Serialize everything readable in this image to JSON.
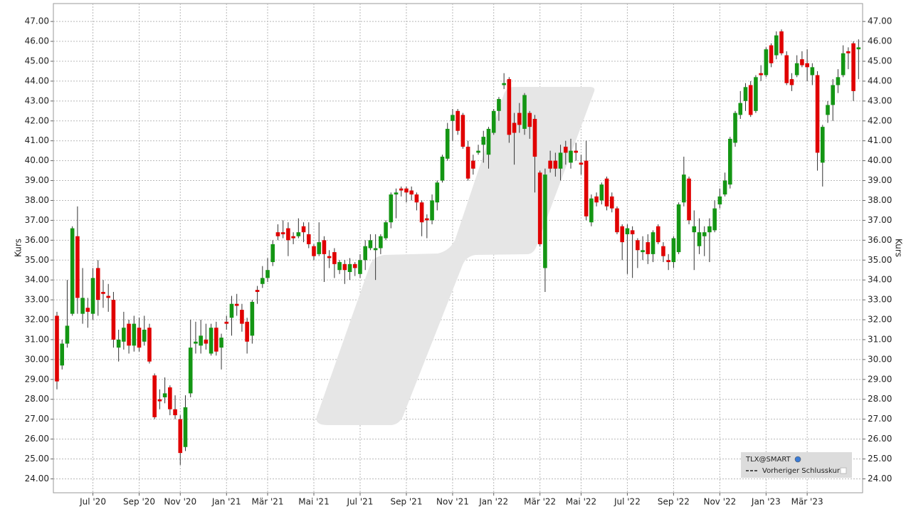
{
  "chart_data": {
    "type": "candlestick",
    "y_label": "Kurs",
    "ylim": [
      23.3,
      47.9
    ],
    "yticks": [
      {
        "value": 24,
        "label": "24.00"
      },
      {
        "value": 25,
        "label": "25.00"
      },
      {
        "value": 26,
        "label": "26.00"
      },
      {
        "value": 27,
        "label": "27.00"
      },
      {
        "value": 28,
        "label": "28.00"
      },
      {
        "value": 29,
        "label": "29.00"
      },
      {
        "value": 30,
        "label": "30.00"
      },
      {
        "value": 31,
        "label": "31.00"
      },
      {
        "value": 32,
        "label": "32.00"
      },
      {
        "value": 33,
        "label": "33.00"
      },
      {
        "value": 34,
        "label": "34.00"
      },
      {
        "value": 35,
        "label": "35.00"
      },
      {
        "value": 36,
        "label": "36.00"
      },
      {
        "value": 37,
        "label": "37.00"
      },
      {
        "value": 38,
        "label": "38.00"
      },
      {
        "value": 39,
        "label": "39.00"
      },
      {
        "value": 40,
        "label": "40.00"
      },
      {
        "value": 41,
        "label": "41.00"
      },
      {
        "value": 42,
        "label": "42.00"
      },
      {
        "value": 43,
        "label": "43.00"
      },
      {
        "value": 44,
        "label": "44.00"
      },
      {
        "value": 45,
        "label": "45.00"
      },
      {
        "value": 46,
        "label": "46.00"
      },
      {
        "value": 47,
        "label": "47.00"
      }
    ],
    "grid": true,
    "legend_position": "lower right",
    "reference_line": {
      "name": "Vorheriger Schlusskurs"
    },
    "categories": [
      null,
      null,
      null,
      null,
      null,
      null,
      null,
      "Jul '20",
      null,
      null,
      null,
      null,
      null,
      null,
      null,
      null,
      "Sep '20",
      null,
      null,
      null,
      null,
      null,
      null,
      null,
      "Nov '20",
      null,
      null,
      null,
      null,
      null,
      null,
      null,
      null,
      "Jan '21",
      null,
      null,
      null,
      null,
      null,
      null,
      null,
      "Mär '21",
      null,
      null,
      null,
      null,
      null,
      null,
      null,
      null,
      "Mai '21",
      null,
      null,
      null,
      null,
      null,
      null,
      null,
      null,
      "Jul '21",
      null,
      null,
      null,
      null,
      null,
      null,
      null,
      null,
      "Sep '21",
      null,
      null,
      null,
      null,
      null,
      null,
      null,
      null,
      "Nov '21",
      null,
      null,
      null,
      null,
      null,
      null,
      null,
      "Jan '22",
      null,
      null,
      null,
      null,
      null,
      null,
      null,
      null,
      "Mär '22",
      null,
      null,
      null,
      null,
      null,
      null,
      null,
      "Mai '22",
      null,
      null,
      null,
      null,
      null,
      null,
      null,
      null,
      "Jul '22",
      null,
      null,
      null,
      null,
      null,
      null,
      null,
      null,
      "Sep '22",
      null,
      null,
      null,
      null,
      null,
      null,
      null,
      null,
      "Nov '22",
      null,
      null,
      null,
      null,
      null,
      null,
      null,
      null,
      "Jan '23",
      null,
      null,
      null,
      null,
      null,
      null,
      null,
      "Mär '23",
      null,
      null,
      null,
      null,
      null,
      null,
      null,
      null,
      null,
      null
    ],
    "series": [
      {
        "name": "TLX@SMART",
        "up_color": "#149614",
        "down_color": "#e00000",
        "wick_color": "#333333",
        "open": [
          32.2,
          29.7,
          30.8,
          32.3,
          36.2,
          32.3,
          32.6,
          32.3,
          34.6,
          33.4,
          33.2,
          33.0,
          30.6,
          30.9,
          31.8,
          30.7,
          31.6,
          30.9,
          31.6,
          29.2,
          28.0,
          28.1,
          28.6,
          27.5,
          27.0,
          25.6,
          28.3,
          30.8,
          30.7,
          31.0,
          30.3,
          31.6,
          30.6,
          31.9,
          32.1,
          32.8,
          32.5,
          31.9,
          31.2,
          33.5,
          33.8,
          34.1,
          34.9,
          36.4,
          36.4,
          36.6,
          36.2,
          36.2,
          36.7,
          36.3,
          35.7,
          35.3,
          36.0,
          35.2,
          35.4,
          34.5,
          34.8,
          34.4,
          34.8,
          34.3,
          35.0,
          35.6,
          35.5,
          35.6,
          36.1,
          36.9,
          38.3,
          38.6,
          38.6,
          38.5,
          38.3,
          37.9,
          37.1,
          37.0,
          37.9,
          39.0,
          40.1,
          42.0,
          42.5,
          42.3,
          40.7,
          40.0,
          40.4,
          40.8,
          40.3,
          41.4,
          42.5,
          43.8,
          44.1,
          41.9,
          42.4,
          41.6,
          42.4,
          42.1,
          39.4,
          34.6,
          40.0,
          40.0,
          39.6,
          40.7,
          39.9,
          40.5,
          39.9,
          40.0,
          36.9,
          38.2,
          38.0,
          39.1,
          38.2,
          37.6,
          36.7,
          36.3,
          36.5,
          36.0,
          35.4,
          35.9,
          35.3,
          36.7,
          35.7,
          35.0,
          34.9,
          35.4,
          37.9,
          39.1,
          36.4,
          35.7,
          36.2,
          36.4,
          36.5,
          37.8,
          38.3,
          38.8,
          40.9,
          42.3,
          43.0,
          43.8,
          42.5,
          44.4,
          44.3,
          45.8,
          45.3,
          46.5,
          45.3,
          44.1,
          44.3,
          45.1,
          44.9,
          44.3,
          44.3,
          39.9,
          42.3,
          42.8,
          43.8,
          44.3,
          45.5,
          45.9,
          45.6
        ],
        "high": [
          32.4,
          31.0,
          34.0,
          36.7,
          37.7,
          34.6,
          33.1,
          34.6,
          35.0,
          34.0,
          33.8,
          33.4,
          31.5,
          32.4,
          32.0,
          32.2,
          32.1,
          32.2,
          31.8,
          29.3,
          28.5,
          29.1,
          28.7,
          28.2,
          27.2,
          28.2,
          32.0,
          31.9,
          32.0,
          31.8,
          31.8,
          31.9,
          31.3,
          32.2,
          33.2,
          33.3,
          32.8,
          32.1,
          33.0,
          33.7,
          34.7,
          35.1,
          36.0,
          36.8,
          37.0,
          36.9,
          36.4,
          37.1,
          36.9,
          36.9,
          35.8,
          36.9,
          36.2,
          35.5,
          35.6,
          35.0,
          35.0,
          35.1,
          34.9,
          35.3,
          36.0,
          36.3,
          36.3,
          36.3,
          37.0,
          38.4,
          38.6,
          38.7,
          38.7,
          38.7,
          38.4,
          38.0,
          37.3,
          38.3,
          39.0,
          40.3,
          41.9,
          42.6,
          42.6,
          42.4,
          41.0,
          40.3,
          40.8,
          41.5,
          41.7,
          42.6,
          43.2,
          44.4,
          44.2,
          42.4,
          42.9,
          43.4,
          42.5,
          42.3,
          39.5,
          39.6,
          40.5,
          40.4,
          40.8,
          41.0,
          41.1,
          40.9,
          40.3,
          41.0,
          38.3,
          38.4,
          38.9,
          39.2,
          38.4,
          37.7,
          36.8,
          36.8,
          36.7,
          36.1,
          36.2,
          36.3,
          36.5,
          36.8,
          35.9,
          35.3,
          36.2,
          37.9,
          40.2,
          39.2,
          37.5,
          37.1,
          36.7,
          37.1,
          38.0,
          38.6,
          39.4,
          41.2,
          42.5,
          43.5,
          43.9,
          44.0,
          44.3,
          44.8,
          45.7,
          45.9,
          46.5,
          46.6,
          45.5,
          44.4,
          45.3,
          45.5,
          45.6,
          44.9,
          44.5,
          41.8,
          43.0,
          44.1,
          44.6,
          45.8,
          45.7,
          46.0,
          46.1
        ],
        "low": [
          28.5,
          29.5,
          30.6,
          32.2,
          32.3,
          31.8,
          31.6,
          32.0,
          32.2,
          32.6,
          32.4,
          30.6,
          29.9,
          30.5,
          30.3,
          30.4,
          30.4,
          30.7,
          29.8,
          27.0,
          27.5,
          27.8,
          27.2,
          27.0,
          24.7,
          25.4,
          28.1,
          30.3,
          30.3,
          30.5,
          30.2,
          30.2,
          29.5,
          31.5,
          31.2,
          32.2,
          31.4,
          30.3,
          30.8,
          32.8,
          33.6,
          33.9,
          34.7,
          36.0,
          36.1,
          35.2,
          35.8,
          36.1,
          35.9,
          35.6,
          35.0,
          35.2,
          33.9,
          34.6,
          34.1,
          34.3,
          33.8,
          34.0,
          34.2,
          34.1,
          34.5,
          35.5,
          34.0,
          35.3,
          36.0,
          36.6,
          37.1,
          38.2,
          37.9,
          38.0,
          37.5,
          36.2,
          36.1,
          36.8,
          37.5,
          38.9,
          40.0,
          41.0,
          41.3,
          40.6,
          39.0,
          39.3,
          40.3,
          39.9,
          39.6,
          41.3,
          42.0,
          43.6,
          40.9,
          39.8,
          41.4,
          41.3,
          41.1,
          38.4,
          35.7,
          33.4,
          39.4,
          39.2,
          39.0,
          39.8,
          39.6,
          40.0,
          39.3,
          37.0,
          36.7,
          37.7,
          37.8,
          37.5,
          37.4,
          36.3,
          35.0,
          34.3,
          34.1,
          34.6,
          35.0,
          34.8,
          34.9,
          35.8,
          34.9,
          34.5,
          34.6,
          35.3,
          37.7,
          36.8,
          34.5,
          35.3,
          35.2,
          34.9,
          36.4,
          37.6,
          38.2,
          38.6,
          40.7,
          42.1,
          42.5,
          42.2,
          42.4,
          44.0,
          44.2,
          44.7,
          45.1,
          45.3,
          43.8,
          43.5,
          44.2,
          44.7,
          44.0,
          43.8,
          39.5,
          38.7,
          41.9,
          42.0,
          43.4,
          44.2,
          44.6,
          43.0,
          44.1
        ],
        "close": [
          28.9,
          30.8,
          31.7,
          36.6,
          33.1,
          33.1,
          32.4,
          34.1,
          33.0,
          33.3,
          33.1,
          31.0,
          31.0,
          31.6,
          30.7,
          31.8,
          30.6,
          31.5,
          29.9,
          27.1,
          27.9,
          28.3,
          27.5,
          27.2,
          25.3,
          27.6,
          30.6,
          30.9,
          31.2,
          30.8,
          31.6,
          30.4,
          31.1,
          31.8,
          32.8,
          32.7,
          31.8,
          30.9,
          32.9,
          33.4,
          34.1,
          34.5,
          35.8,
          36.2,
          36.3,
          36.0,
          36.1,
          36.4,
          36.4,
          35.8,
          35.2,
          35.9,
          35.3,
          35.1,
          34.8,
          34.9,
          34.5,
          34.8,
          34.6,
          35.0,
          35.7,
          36.0,
          35.6,
          36.2,
          36.9,
          38.3,
          38.4,
          38.5,
          38.4,
          38.3,
          37.9,
          36.9,
          37.0,
          38.0,
          38.9,
          40.2,
          41.6,
          42.3,
          41.5,
          40.7,
          39.1,
          39.6,
          40.5,
          41.2,
          41.6,
          42.5,
          43.1,
          43.9,
          41.3,
          41.4,
          41.8,
          43.3,
          41.7,
          40.2,
          35.8,
          39.3,
          39.6,
          39.6,
          40.4,
          40.4,
          40.5,
          40.4,
          39.8,
          37.2,
          38.1,
          37.9,
          38.8,
          37.7,
          37.6,
          36.4,
          35.9,
          36.6,
          36.3,
          35.5,
          35.5,
          35.3,
          36.4,
          35.9,
          35.2,
          34.9,
          36.1,
          37.8,
          39.3,
          37.0,
          36.7,
          36.4,
          36.4,
          36.7,
          37.6,
          38.2,
          39.0,
          41.1,
          42.4,
          42.9,
          43.7,
          42.3,
          44.2,
          44.3,
          45.6,
          44.9,
          46.3,
          45.4,
          43.9,
          43.8,
          44.9,
          44.8,
          44.7,
          44.7,
          40.4,
          41.7,
          42.8,
          43.8,
          44.2,
          45.4,
          45.4,
          43.5,
          45.7
        ]
      }
    ]
  }
}
